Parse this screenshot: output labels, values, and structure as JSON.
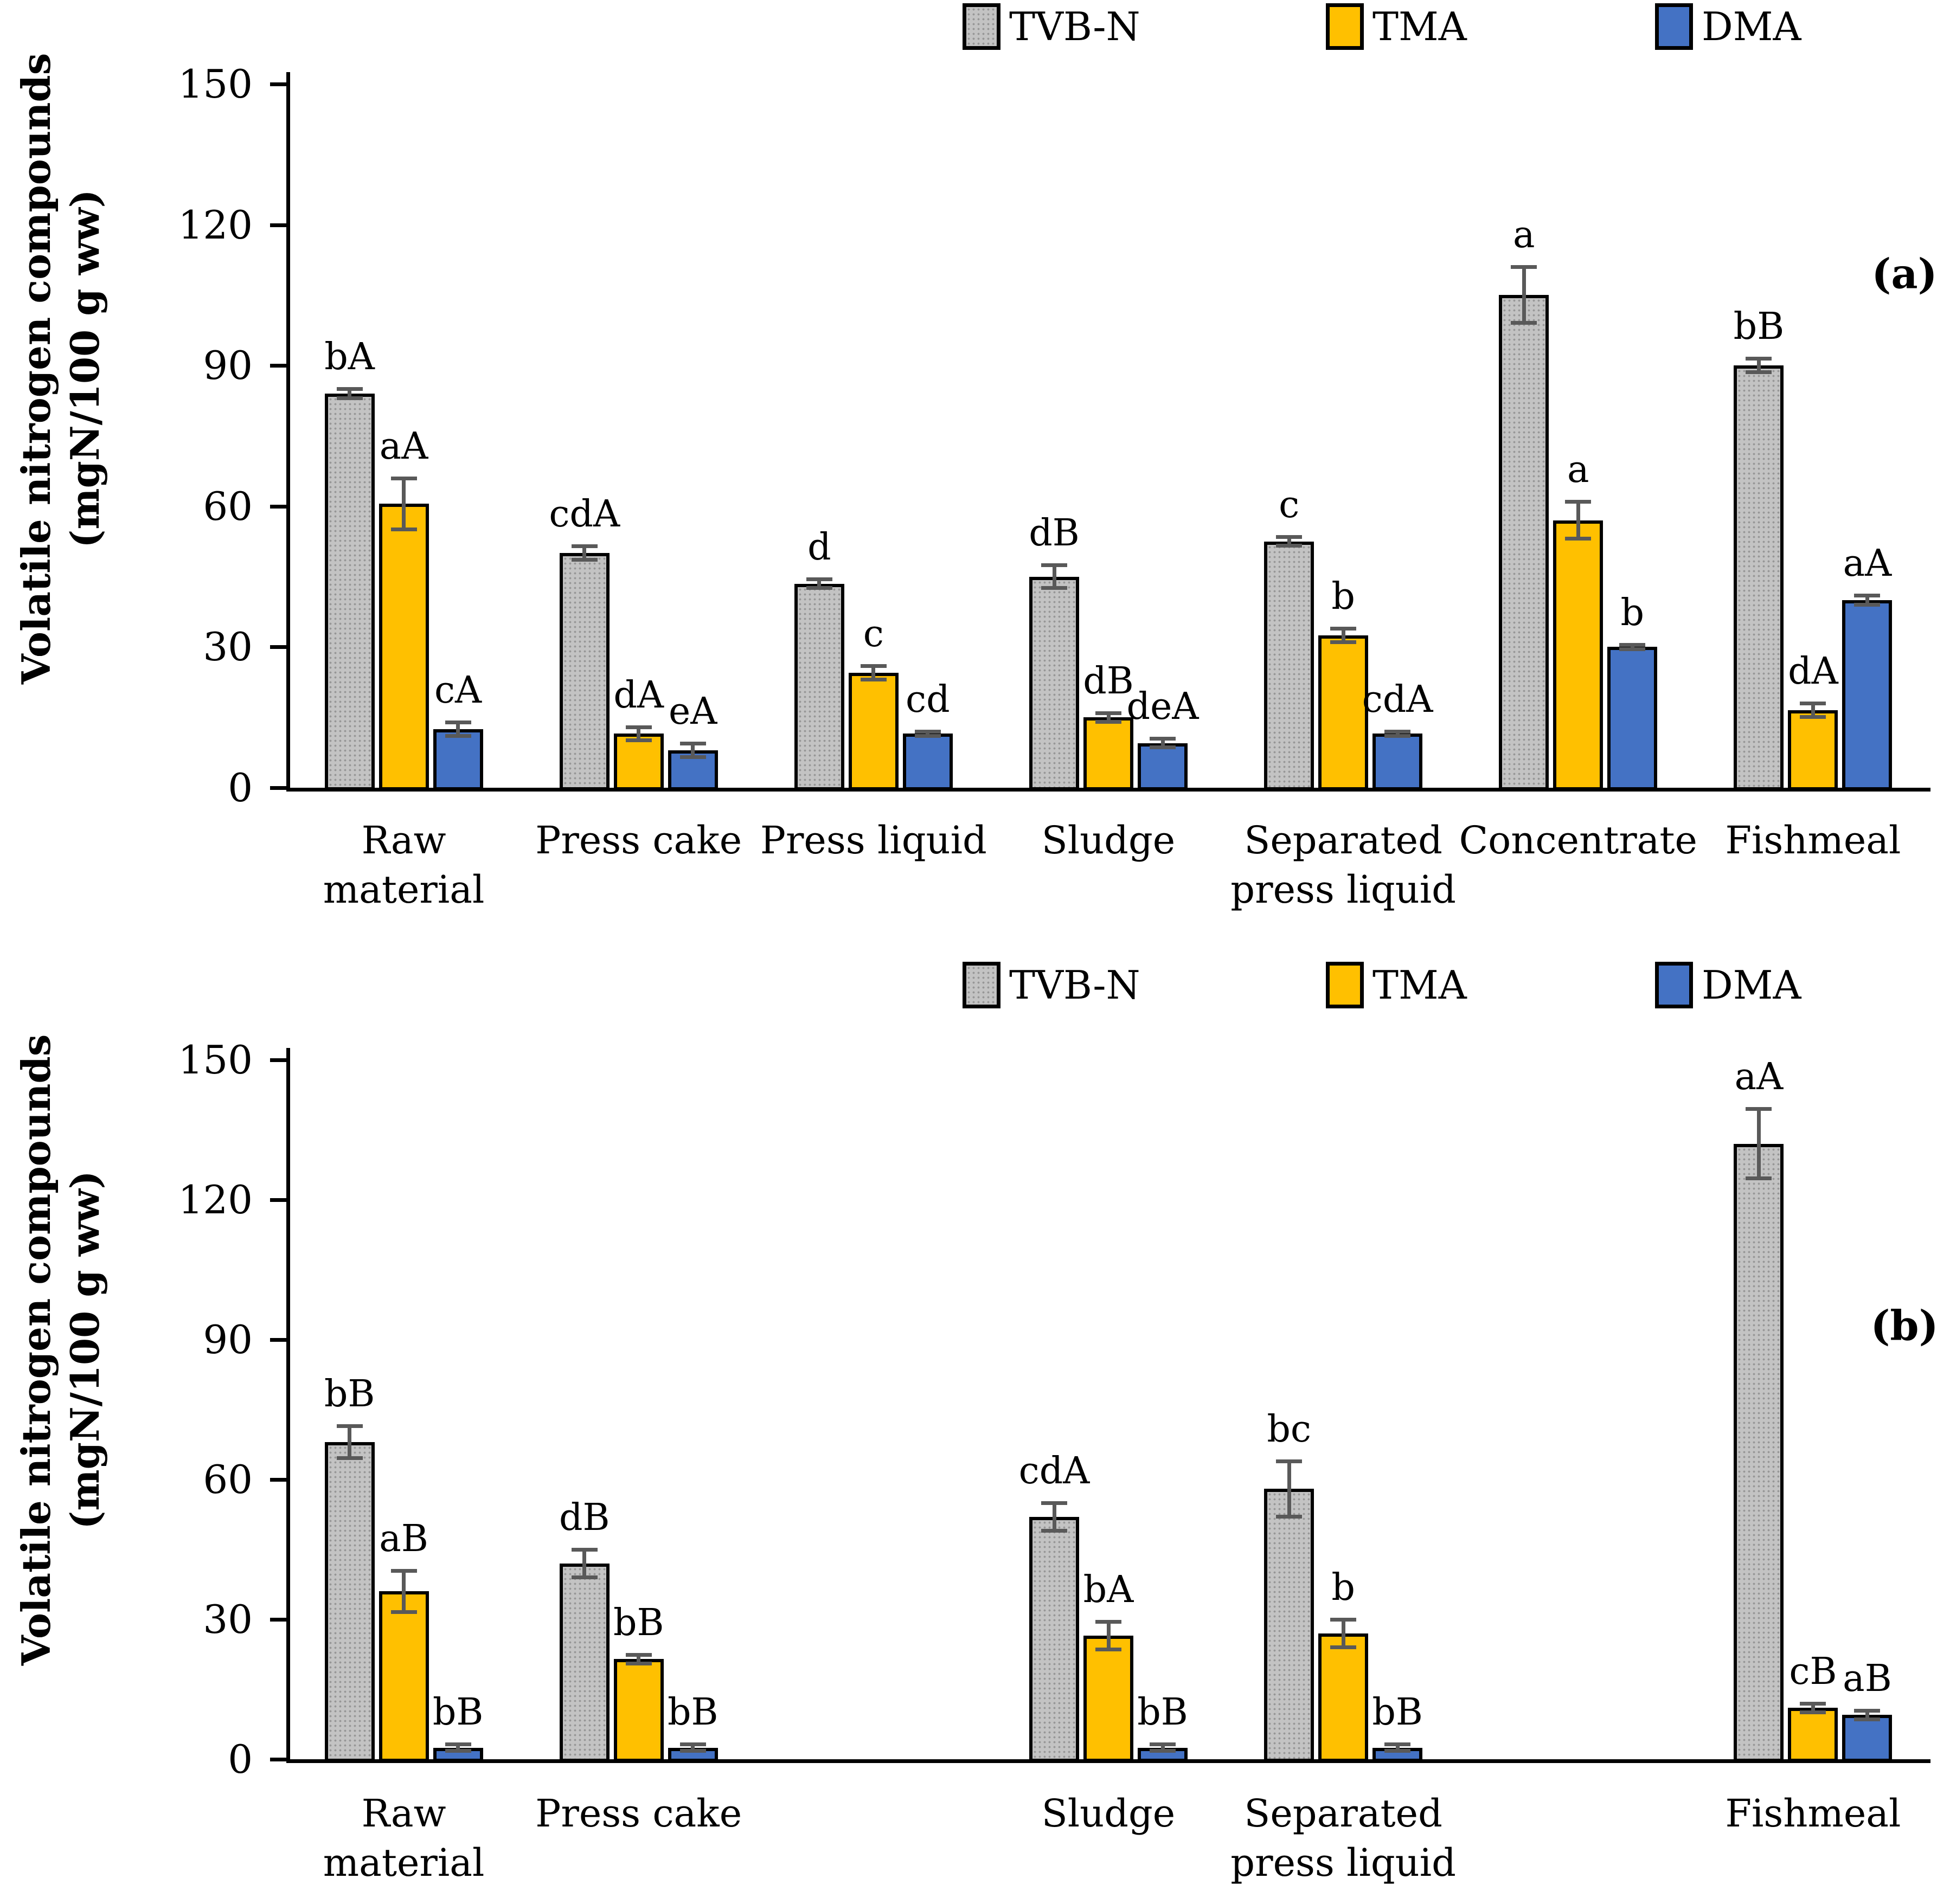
{
  "figure": {
    "ylabel_line1": "Volatile nitrogen compounds",
    "ylabel_line2": "(mgN/100 g ww)"
  },
  "legend": {
    "items": [
      {
        "label": "TVB-N",
        "color": "#BFBFBF",
        "pattern": "stipple"
      },
      {
        "label": "TMA",
        "color": "#FFC000",
        "pattern": "none"
      },
      {
        "label": "DMA",
        "color": "#4472C4",
        "pattern": "none"
      }
    ]
  },
  "chart_data": [
    {
      "panel_label": "(a)",
      "type": "bar",
      "title": "",
      "xlabel": "",
      "ylabel": "Volatile nitrogen compounds (mgN/100 g ww)",
      "ylim": [
        0,
        150
      ],
      "yticks": [
        0,
        30,
        60,
        90,
        120,
        150
      ],
      "grid": false,
      "legend_position": "top",
      "error_bars": true,
      "categories": [
        "Raw\nmaterial",
        "Press cake",
        "Press liquid",
        "Sludge",
        "Separated\npress liquid",
        "Concentrate",
        "Fishmeal"
      ],
      "series": [
        {
          "name": "TVB-N",
          "color": "#BFBFBF",
          "values": [
            84,
            50,
            43.5,
            45,
            52.5,
            105,
            90
          ],
          "errors": [
            1,
            1.5,
            1,
            2.5,
            1,
            6,
            1.5
          ],
          "sig_labels": [
            "bA",
            "cdA",
            "d",
            "dB",
            "c",
            "a",
            "bB"
          ]
        },
        {
          "name": "TMA",
          "color": "#FFC000",
          "values": [
            60.5,
            11.5,
            24.5,
            15,
            32.5,
            57,
            16.5
          ],
          "errors": [
            5.5,
            1.5,
            1.5,
            1,
            1.5,
            4,
            1.5
          ],
          "sig_labels": [
            "aA",
            "dA",
            "c",
            "dB",
            "b",
            "a",
            "dA"
          ]
        },
        {
          "name": "DMA",
          "color": "#4472C4",
          "values": [
            12.5,
            8,
            11.5,
            9.5,
            11.5,
            30,
            40
          ],
          "errors": [
            1.5,
            1.5,
            0.5,
            1,
            0.5,
            0.5,
            1
          ],
          "sig_labels": [
            "cA",
            "eA",
            "cd",
            "deA",
            "cdA",
            "b",
            "aA"
          ]
        }
      ]
    },
    {
      "panel_label": "(b)",
      "type": "bar",
      "title": "",
      "xlabel": "",
      "ylabel": "Volatile nitrogen compounds (mgN/100 g ww)",
      "ylim": [
        0,
        150
      ],
      "yticks": [
        0,
        30,
        60,
        90,
        120,
        150
      ],
      "grid": false,
      "legend_position": "top",
      "error_bars": true,
      "categories": [
        "Raw\nmaterial",
        "Press cake",
        "",
        "Sludge",
        "Separated\npress liquid",
        "",
        "Fishmeal"
      ],
      "series": [
        {
          "name": "TVB-N",
          "color": "#BFBFBF",
          "values": [
            68,
            42,
            null,
            52,
            58,
            null,
            132
          ],
          "errors": [
            3.5,
            3,
            null,
            3,
            6,
            null,
            7.5
          ],
          "sig_labels": [
            "bB",
            "dB",
            null,
            "cdA",
            "bc",
            null,
            "aA"
          ]
        },
        {
          "name": "TMA",
          "color": "#FFC000",
          "values": [
            36,
            21.5,
            null,
            26.5,
            27,
            null,
            11
          ],
          "errors": [
            4.5,
            1,
            null,
            3,
            3,
            null,
            1
          ],
          "sig_labels": [
            "aB",
            "bB",
            null,
            "bA",
            "b",
            null,
            "cB"
          ]
        },
        {
          "name": "DMA",
          "color": "#4472C4",
          "values": [
            2.5,
            2.5,
            null,
            2.5,
            2.5,
            null,
            9.5
          ],
          "errors": [
            0.8,
            0.8,
            null,
            0.8,
            0.8,
            null,
            1
          ],
          "sig_labels": [
            "bB",
            "bB",
            null,
            "bB",
            "bB",
            null,
            "aB"
          ]
        }
      ]
    }
  ]
}
